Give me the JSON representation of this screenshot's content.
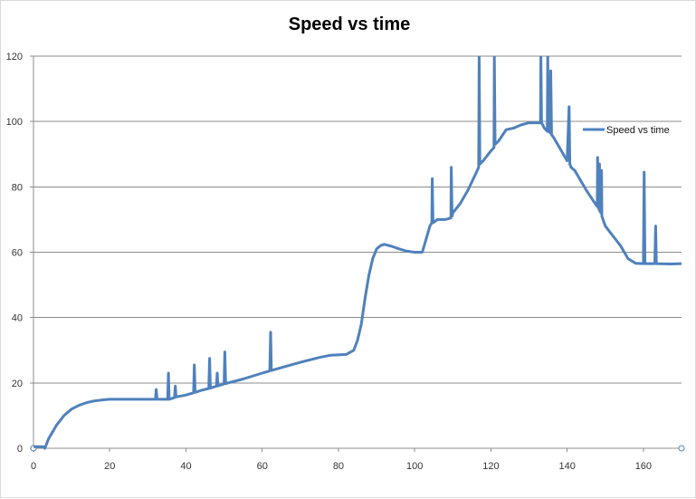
{
  "chart_data": {
    "type": "line",
    "title": "Speed vs time",
    "xlabel": "",
    "ylabel": "",
    "xlim": [
      0,
      170
    ],
    "ylim": [
      0,
      120
    ],
    "x_ticks": [
      0,
      20,
      40,
      60,
      80,
      100,
      120,
      140,
      160
    ],
    "y_ticks": [
      0,
      20,
      40,
      60,
      80,
      100,
      120
    ],
    "grid": "horizontal",
    "legend_position": "right",
    "series": [
      {
        "name": "Speed vs time",
        "color": "#4f81bd",
        "points": [
          [
            0,
            0.5
          ],
          [
            2.5,
            0.5
          ],
          [
            3,
            0
          ],
          [
            4,
            3
          ],
          [
            6,
            7
          ],
          [
            8,
            10
          ],
          [
            10,
            12
          ],
          [
            12,
            13.2
          ],
          [
            14,
            14
          ],
          [
            16,
            14.5
          ],
          [
            18,
            14.8
          ],
          [
            20,
            15
          ],
          [
            25,
            15
          ],
          [
            30,
            15
          ],
          [
            32,
            15
          ],
          [
            32.2,
            18
          ],
          [
            32.4,
            15
          ],
          [
            34,
            15
          ],
          [
            35.2,
            15
          ],
          [
            35.4,
            23
          ],
          [
            35.6,
            15
          ],
          [
            37,
            15.5
          ],
          [
            37.2,
            19
          ],
          [
            37.4,
            15.7
          ],
          [
            40,
            16.3
          ],
          [
            42,
            17
          ],
          [
            42.2,
            25.5
          ],
          [
            42.4,
            17.1
          ],
          [
            44,
            17.7
          ],
          [
            46,
            18.3
          ],
          [
            46.2,
            27.5
          ],
          [
            46.4,
            18.4
          ],
          [
            48,
            19
          ],
          [
            48.2,
            23
          ],
          [
            48.4,
            19.1
          ],
          [
            50,
            19.7
          ],
          [
            50.2,
            29.5
          ],
          [
            50.4,
            19.8
          ],
          [
            55,
            21.2
          ],
          [
            60,
            23
          ],
          [
            62,
            23.7
          ],
          [
            62.2,
            35.5
          ],
          [
            62.4,
            23.8
          ],
          [
            65,
            24.7
          ],
          [
            70,
            26.3
          ],
          [
            75,
            27.8
          ],
          [
            78,
            28.5
          ],
          [
            82,
            28.7
          ],
          [
            84,
            30
          ],
          [
            85,
            33
          ],
          [
            86,
            38
          ],
          [
            87,
            46
          ],
          [
            88,
            53
          ],
          [
            89,
            58
          ],
          [
            90,
            61
          ],
          [
            91,
            62
          ],
          [
            92,
            62.4
          ],
          [
            94,
            61.8
          ],
          [
            96,
            61
          ],
          [
            98,
            60.3
          ],
          [
            100,
            60
          ],
          [
            102,
            60
          ],
          [
            103,
            64
          ],
          [
            104,
            68
          ],
          [
            104.5,
            69
          ],
          [
            104.6,
            82.5
          ],
          [
            104.8,
            69
          ],
          [
            106,
            70
          ],
          [
            108,
            70
          ],
          [
            109,
            70.3
          ],
          [
            109.5,
            70.5
          ],
          [
            109.6,
            86
          ],
          [
            109.8,
            71
          ],
          [
            110,
            72
          ],
          [
            112,
            75
          ],
          [
            114,
            79
          ],
          [
            116,
            84
          ],
          [
            116.8,
            86
          ],
          [
            116.9,
            120
          ],
          [
            117.1,
            87
          ],
          [
            118,
            88
          ],
          [
            120,
            91
          ],
          [
            120.8,
            92
          ],
          [
            120.9,
            120
          ],
          [
            121.1,
            93
          ],
          [
            122,
            94
          ],
          [
            124,
            97.5
          ],
          [
            126,
            98
          ],
          [
            128,
            99
          ],
          [
            130,
            99.6
          ],
          [
            133,
            99.6
          ],
          [
            133.1,
            120
          ],
          [
            133.3,
            99.6
          ],
          [
            134,
            98
          ],
          [
            134.8,
            97
          ],
          [
            134.9,
            120
          ],
          [
            135.1,
            97
          ],
          [
            135.6,
            96.5
          ],
          [
            135.7,
            115.5
          ],
          [
            135.9,
            96
          ],
          [
            136.5,
            95
          ],
          [
            137,
            94
          ],
          [
            138,
            92
          ],
          [
            140,
            88
          ],
          [
            140.5,
            104.5
          ],
          [
            140.7,
            87
          ],
          [
            141,
            86
          ],
          [
            142,
            85
          ],
          [
            143,
            83
          ],
          [
            145,
            79
          ],
          [
            147,
            75.5
          ],
          [
            147.9,
            74
          ],
          [
            148,
            89
          ],
          [
            148.1,
            74
          ],
          [
            148.4,
            73
          ],
          [
            148.5,
            87
          ],
          [
            148.6,
            72.5
          ],
          [
            148.9,
            72
          ],
          [
            149,
            85
          ],
          [
            149.1,
            71
          ],
          [
            150,
            68
          ],
          [
            152,
            65
          ],
          [
            154,
            62
          ],
          [
            156,
            58
          ],
          [
            158,
            56.6
          ],
          [
            160,
            56.5
          ],
          [
            160.2,
            84.5
          ],
          [
            160.4,
            56.5
          ],
          [
            163,
            56.5
          ],
          [
            163.2,
            68
          ],
          [
            163.4,
            56.5
          ],
          [
            167,
            56.4
          ],
          [
            170,
            56.5
          ]
        ]
      }
    ]
  }
}
